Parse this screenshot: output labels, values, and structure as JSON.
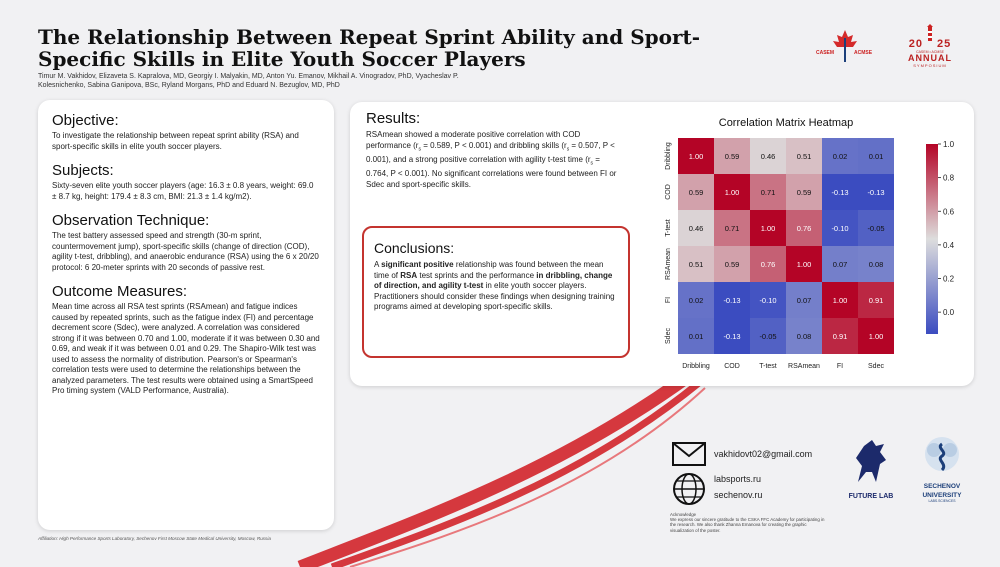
{
  "header": {
    "title": "The Relationship Between Repeat Sprint Ability and Sport-Specific Skills in Elite Youth Soccer Players",
    "authors": "Timur M. Vakhidov, Elizaveta S. Kapralova, MD, Georgiy I. Malyakin, MD, Anton Yu. Emanov, Mikhail A. Vinogradov, PhD, Vyacheslav P. Kolesnichenko, Sabina Ganipova, BSc, Ryland Morgans, PhD and Eduard N. Bezuglov, MD, PhD"
  },
  "logos": {
    "casem": "CASEM",
    "acmse": "ACMSE",
    "year_left": "20",
    "year_right": "25",
    "sub": "CASEM • ACMSE",
    "annual": "ANNUAL",
    "symposium": "SYMPOSIUM",
    "future_lab": "FUTURE LAB",
    "sechenov_1": "SECHENOV",
    "sechenov_2": "UNIVERSITY",
    "sechenov_3": "LABS.SCIENCES"
  },
  "left": {
    "objective_h": "Objective:",
    "objective": "To investigate the relationship between repeat sprint ability (RSA) and sport-specific skills in elite youth soccer players.",
    "subjects_h": "Subjects:",
    "subjects": "Sixty-seven elite youth soccer players (age: 16.3 ± 0.8 years, weight: 69.0 ± 8.7 kg, height: 179.4 ± 8.3 cm, BMI: 21.3 ± 1.4 kg/m2).",
    "observation_h": "Observation Technique:",
    "observation": "The test battery assessed speed and strength (30-m sprint, countermovement jump), sport-specific skills (change of direction (COD), agility t-test, dribbling), and anaerobic endurance (RSA) using the 6 x 20/20 protocol: 6 20-meter sprints with 20 seconds of passive rest.",
    "outcome_h": "Outcome Measures:",
    "outcome": "Mean time across all RSA test sprints (RSAmean) and fatigue indices caused by repeated sprints, such as the fatigue index (FI) and percentage decrement score (Sdec), were analyzed. A correlation was considered strong if it was between 0.70 and 1.00, moderate if it was between 0.30 and 0.69, and weak if it was between 0.01 and 0.29. The Shapiro-Wilk test was used to assess the normality of distribution. Pearson's or Spearman's correlation tests were used to determine the relationships between the analyzed parameters. The test results were obtained using a SmartSpeed Pro timing system (VALD Performance, Australia)."
  },
  "results": {
    "heading": "Results:",
    "p1": "RSAmean showed a moderate positive correlation with COD performance (r",
    "s": "s",
    "p2": " = 0.589, P < 0.001) and dribbling skills (r",
    "p3": " = 0.507, P < 0.001), and a strong positive correlation with agility t-test time (r",
    "p4": " = 0.764, P < 0.001). No significant correlations were found between FI or Sdec and sport-specific skills."
  },
  "conclusions": {
    "heading": "Conclusions:",
    "t1": "A ",
    "b1": "significant positive",
    "t2": " relationship was found between the mean time of ",
    "b2": "RSA",
    "t3": " test sprints and the performance ",
    "b3": "in dribbling, change of direction, and agility t-test",
    "t4": " in elite youth soccer players. Practitioners should consider these findings when designing training programs aimed at developing sport-specific skills."
  },
  "chart_data": {
    "type": "heatmap",
    "title": "Correlation Matrix Heatmap",
    "labels": [
      "Dribbling",
      "COD",
      "T-test",
      "RSAmean",
      "FI",
      "Sdec"
    ],
    "matrix": [
      [
        1.0,
        0.59,
        0.46,
        0.51,
        0.02,
        0.01
      ],
      [
        0.59,
        1.0,
        0.71,
        0.59,
        -0.13,
        -0.13
      ],
      [
        0.46,
        0.71,
        1.0,
        0.76,
        -0.1,
        -0.05
      ],
      [
        0.51,
        0.59,
        0.76,
        1.0,
        0.07,
        0.08
      ],
      [
        0.02,
        -0.13,
        -0.1,
        0.07,
        1.0,
        0.91
      ],
      [
        0.01,
        -0.13,
        -0.05,
        0.08,
        0.91,
        1.0
      ]
    ],
    "colorbar_ticks": [
      "1.0",
      "0.8",
      "0.6",
      "0.4",
      "0.2",
      "0.0"
    ],
    "colorbar_range": [
      -0.13,
      1.0
    ],
    "colormap": "coolwarm"
  },
  "contact": {
    "email": "vakhidovt02@gmail.com",
    "site1": "labsports.ru",
    "site2": "sechenov.ru",
    "ack_title": "Acknowledge",
    "ack_text": "We express our sincere gratitude to the CSKA FFC Academy for participating in the research. We also thank Zhanna Emanova for creating the graphic visualization of the poster."
  },
  "footer": {
    "affiliation": "Affiliation: High Performance Sports Laboratory, Sechenov First Moscow State Medical University, Moscow, Russia"
  },
  "colors": {
    "accent_red": "#c4342f",
    "navy": "#1c2a6b"
  }
}
